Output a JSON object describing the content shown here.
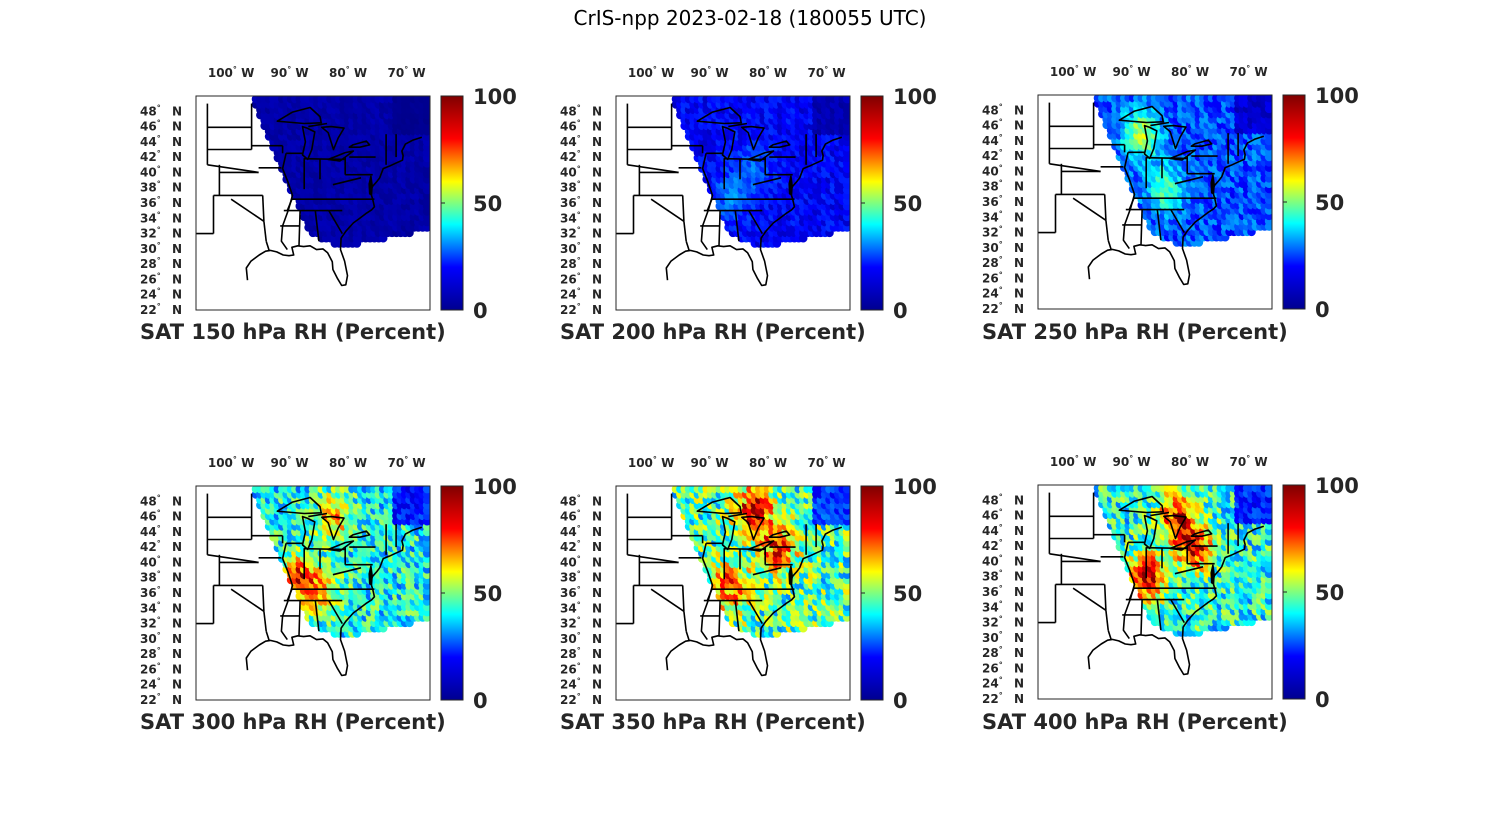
{
  "figure": {
    "title": "CrIS-npp 2023-02-18 (180055 UTC)"
  },
  "colorbar": {
    "ticks": [
      0,
      50,
      100
    ],
    "colormap": "jet",
    "colors": [
      "#00008f",
      "#0000ff",
      "#00ffff",
      "#ffff00",
      "#ff0000",
      "#800000"
    ]
  },
  "map": {
    "lon_ticks": [
      {
        "num": "100",
        "deg": "°",
        "hem": "W"
      },
      {
        "num": "90",
        "deg": "°",
        "hem": "W"
      },
      {
        "num": "80",
        "deg": "°",
        "hem": "W"
      },
      {
        "num": "70",
        "deg": "°",
        "hem": "W"
      }
    ],
    "lat_ticks": [
      {
        "num": "48",
        "deg": "°",
        "hem": "N"
      },
      {
        "num": "46",
        "deg": "°",
        "hem": "N"
      },
      {
        "num": "44",
        "deg": "°",
        "hem": "N"
      },
      {
        "num": "42",
        "deg": "°",
        "hem": "N"
      },
      {
        "num": "40",
        "deg": "°",
        "hem": "N"
      },
      {
        "num": "38",
        "deg": "°",
        "hem": "N"
      },
      {
        "num": "36",
        "deg": "°",
        "hem": "N"
      },
      {
        "num": "34",
        "deg": "°",
        "hem": "N"
      },
      {
        "num": "32",
        "deg": "°",
        "hem": "N"
      },
      {
        "num": "30",
        "deg": "°",
        "hem": "N"
      },
      {
        "num": "28",
        "deg": "°",
        "hem": "N"
      },
      {
        "num": "26",
        "deg": "°",
        "hem": "N"
      },
      {
        "num": "24",
        "deg": "°",
        "hem": "N"
      },
      {
        "num": "22",
        "deg": "°",
        "hem": "N"
      }
    ],
    "lon_range": [
      -106,
      -66
    ],
    "lat_range": [
      22,
      50
    ]
  },
  "panels": [
    {
      "caption": "SAT 150 hPa RH (Percent)",
      "level_hpa": 150,
      "mean_rh": 4,
      "hotspots": []
    },
    {
      "caption": "SAT 200 hPa RH (Percent)",
      "level_hpa": 200,
      "mean_rh": 12,
      "hotspots": [
        {
          "lon": -86,
          "lat": 37,
          "rh": 25
        },
        {
          "lon": -82,
          "lat": 41,
          "rh": 22
        }
      ]
    },
    {
      "caption": "SAT 250 hPa RH (Percent)",
      "level_hpa": 250,
      "mean_rh": 20,
      "hotspots": [
        {
          "lon": -88,
          "lat": 45,
          "rh": 55
        },
        {
          "lon": -84,
          "lat": 38,
          "rh": 45
        }
      ]
    },
    {
      "caption": "SAT 300 hPa RH (Percent)",
      "level_hpa": 300,
      "mean_rh": 38,
      "hotspots": [
        {
          "lon": -88,
          "lat": 38,
          "rh": 85
        },
        {
          "lon": -84,
          "lat": 36,
          "rh": 65
        },
        {
          "lon": -82,
          "lat": 46,
          "rh": 70
        }
      ]
    },
    {
      "caption": "SAT 350 hPa RH (Percent)",
      "level_hpa": 350,
      "mean_rh": 45,
      "hotspots": [
        {
          "lon": -86,
          "lat": 37,
          "rh": 80
        },
        {
          "lon": -78,
          "lat": 42,
          "rh": 80
        },
        {
          "lon": -82,
          "lat": 47,
          "rh": 90
        }
      ]
    },
    {
      "caption": "SAT 400 hPa RH (Percent)",
      "level_hpa": 400,
      "mean_rh": 40,
      "hotspots": [
        {
          "lon": -87,
          "lat": 38,
          "rh": 95
        },
        {
          "lon": -79,
          "lat": 42,
          "rh": 90
        },
        {
          "lon": -82,
          "lat": 46,
          "rh": 85
        }
      ]
    }
  ]
}
